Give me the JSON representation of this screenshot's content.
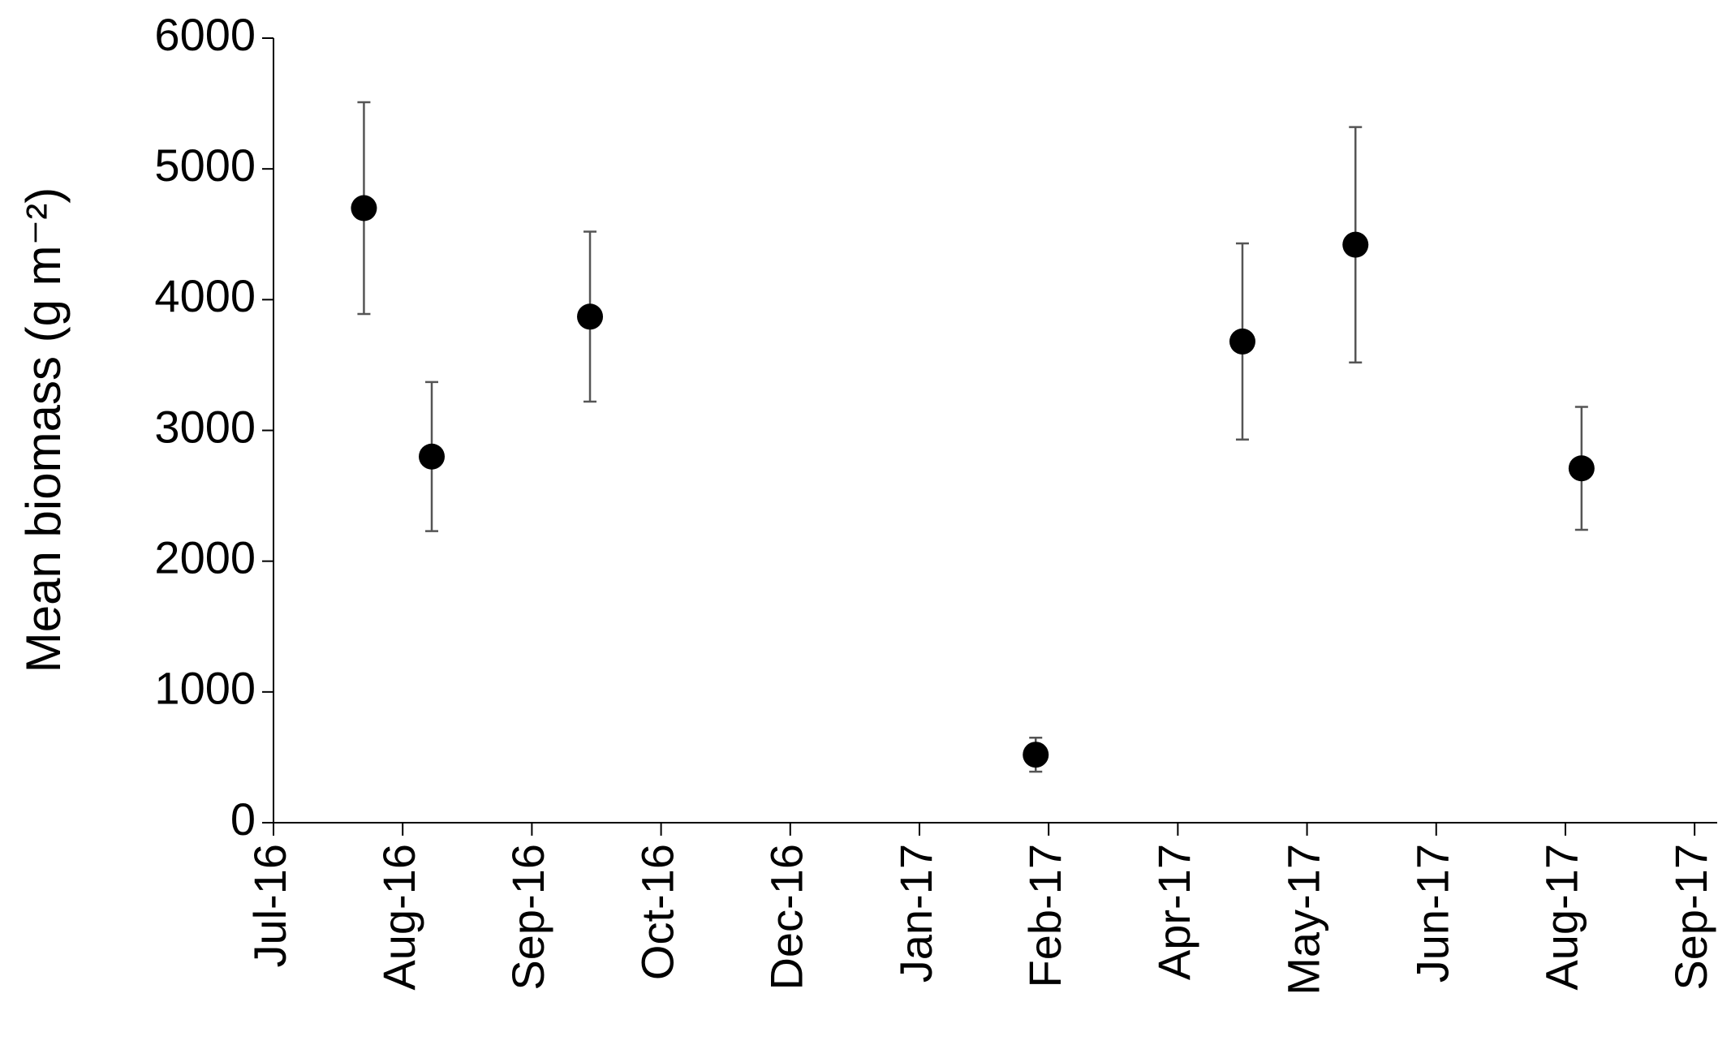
{
  "chart_data": {
    "type": "scatter",
    "y_label": "Mean biomass (g m⁻²)",
    "x": [
      28,
      49,
      98,
      236,
      300,
      335,
      405
    ],
    "series": [
      {
        "color": "#000000",
        "values": [
          4700,
          2800,
          3870,
          520,
          3680,
          4420,
          2710
        ],
        "errors": [
          810,
          570,
          650,
          130,
          750,
          900,
          470
        ]
      }
    ],
    "xlim": [
      0,
      447
    ],
    "xticks": [
      {
        "value": 0,
        "label": "Jul-16"
      },
      {
        "value": 40,
        "label": "Aug-16"
      },
      {
        "value": 80,
        "label": "Sep-16"
      },
      {
        "value": 120,
        "label": "Oct-16"
      },
      {
        "value": 160,
        "label": "Dec-16"
      },
      {
        "value": 200,
        "label": "Jan-17"
      },
      {
        "value": 240,
        "label": "Feb-17"
      },
      {
        "value": 280,
        "label": "Apr-17"
      },
      {
        "value": 320,
        "label": "May-17"
      },
      {
        "value": 360,
        "label": "Jun-17"
      },
      {
        "value": 400,
        "label": "Aug-17"
      },
      {
        "value": 440,
        "label": "Sep-17"
      }
    ],
    "ylim": [
      0,
      6000
    ],
    "yticks": [
      0,
      1000,
      2000,
      3000,
      4000,
      5000,
      6000
    ],
    "grid": false
  }
}
